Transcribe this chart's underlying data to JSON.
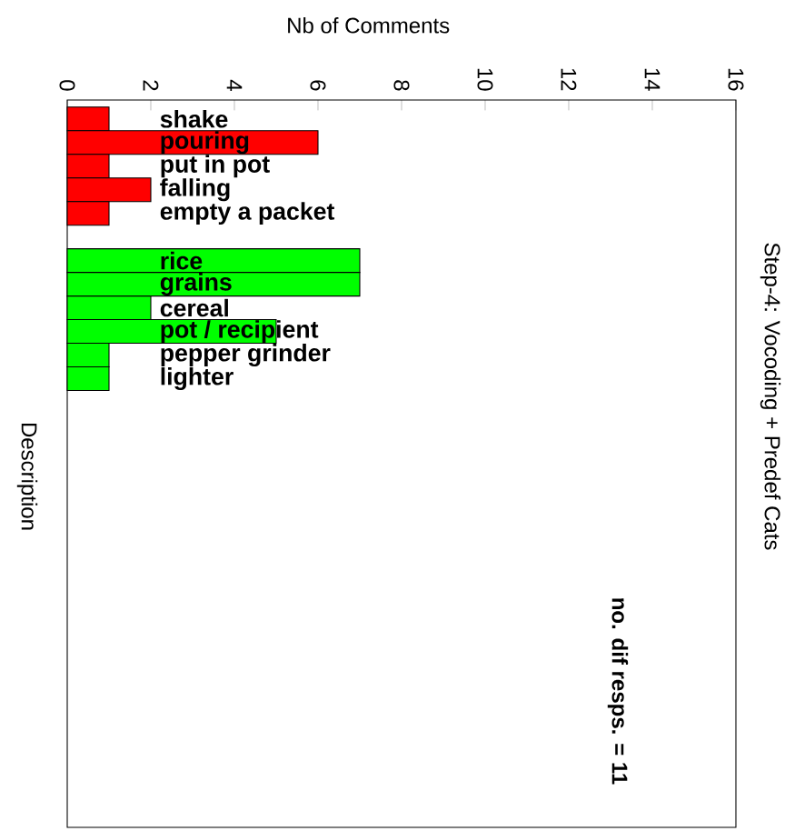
{
  "chart_data": {
    "type": "bar",
    "orientation": "horizontal",
    "title": "Step-4: Vocoding + Predef Cats",
    "xlabel": "Nb of Comments",
    "ylabel": "Description",
    "categories": [
      "shake",
      "pouring",
      "put in pot",
      "falling",
      "empty a packet",
      null,
      "rice",
      "grains",
      "cereal",
      "pot / recipient",
      "pepper grinder",
      "lighter"
    ],
    "values": [
      1,
      6,
      1,
      2,
      1,
      null,
      7,
      7,
      2,
      5,
      1,
      1
    ],
    "colors": [
      "#ff0000",
      "#ff0000",
      "#ff0000",
      "#ff0000",
      "#ff0000",
      null,
      "#00ff00",
      "#00ff00",
      "#00ff00",
      "#00ff00",
      "#00ff00",
      "#00ff00"
    ],
    "xlim": [
      0,
      16
    ],
    "xticks": [
      0,
      2,
      4,
      6,
      8,
      10,
      12,
      14,
      16
    ],
    "annotations": [
      "no. dif resps. = 11"
    ]
  }
}
